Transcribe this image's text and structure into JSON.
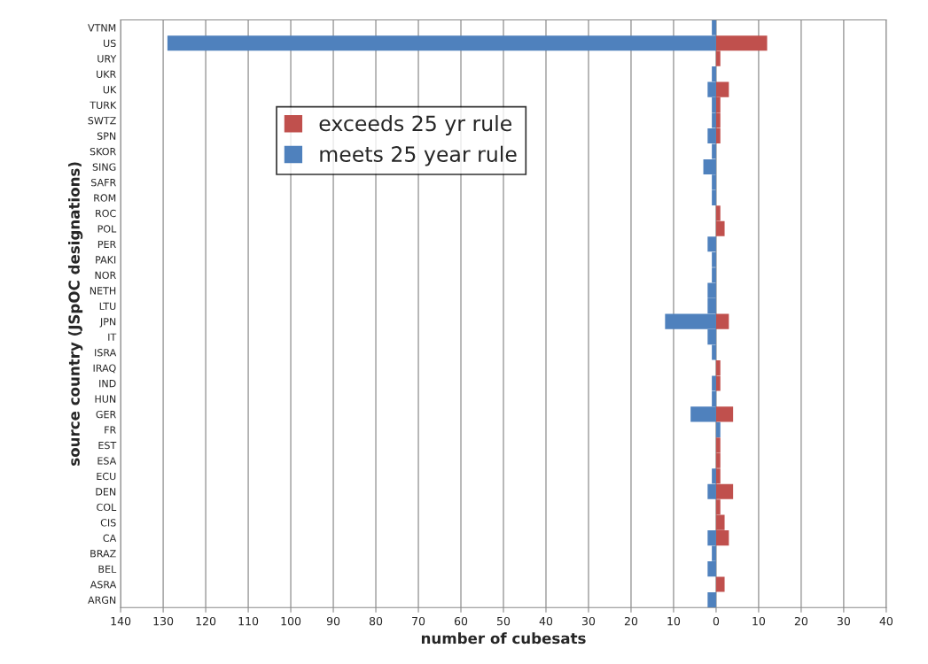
{
  "chart_data": {
    "type": "bar",
    "orientation": "horizontal",
    "xlabel": "number of cubesats",
    "ylabel": "source country (JSpOC designations)",
    "categories": [
      "VTNM",
      "US",
      "URY",
      "UKR",
      "UK",
      "TURK",
      "SWTZ",
      "SPN",
      "SKOR",
      "SING",
      "SAFR",
      "ROM",
      "ROC",
      "POL",
      "PER",
      "PAKI",
      "NOR",
      "NETH",
      "LTU",
      "JPN",
      "IT",
      "ISRA",
      "IRAQ",
      "IND",
      "HUN",
      "GER",
      "FR",
      "EST",
      "ESA",
      "ECU",
      "DEN",
      "COL",
      "CIS",
      "CA",
      "BRAZ",
      "BEL",
      "ASRA",
      "ARGN"
    ],
    "series": [
      {
        "name": "exceeds 25 yr rule",
        "color": "#c0504d",
        "values": [
          null,
          12,
          1,
          null,
          3,
          1,
          1,
          1,
          null,
          null,
          null,
          null,
          1,
          2,
          null,
          null,
          null,
          null,
          null,
          3,
          null,
          null,
          1,
          1,
          null,
          4,
          null,
          1,
          1,
          1,
          4,
          1,
          2,
          3,
          null,
          null,
          2,
          null
        ]
      },
      {
        "name": "meets 25 year rule",
        "color": "#4f81bd",
        "values": [
          -1,
          -129,
          null,
          -1,
          -2,
          -1,
          -1,
          -2,
          -1,
          -3,
          -1,
          -1,
          null,
          null,
          -2,
          -1,
          -1,
          -2,
          -2,
          -12,
          -2,
          -1,
          null,
          -1,
          -1,
          -6,
          1,
          null,
          null,
          -1,
          -2,
          null,
          null,
          -2,
          -1,
          -2,
          null,
          -2
        ]
      }
    ],
    "xlim": [
      -140,
      40
    ],
    "xticks": [
      {
        "value": -140,
        "label": "140"
      },
      {
        "value": -130,
        "label": "130"
      },
      {
        "value": -120,
        "label": "120"
      },
      {
        "value": -110,
        "label": "110"
      },
      {
        "value": -100,
        "label": "100"
      },
      {
        "value": -90,
        "label": "90"
      },
      {
        "value": -80,
        "label": "80"
      },
      {
        "value": -70,
        "label": "70"
      },
      {
        "value": -60,
        "label": "60"
      },
      {
        "value": -50,
        "label": "50"
      },
      {
        "value": -40,
        "label": "40"
      },
      {
        "value": -30,
        "label": "30"
      },
      {
        "value": -20,
        "label": "20"
      },
      {
        "value": -10,
        "label": "10"
      },
      0,
      10,
      20,
      30,
      40
    ],
    "grid": "x",
    "legend": "top left"
  }
}
